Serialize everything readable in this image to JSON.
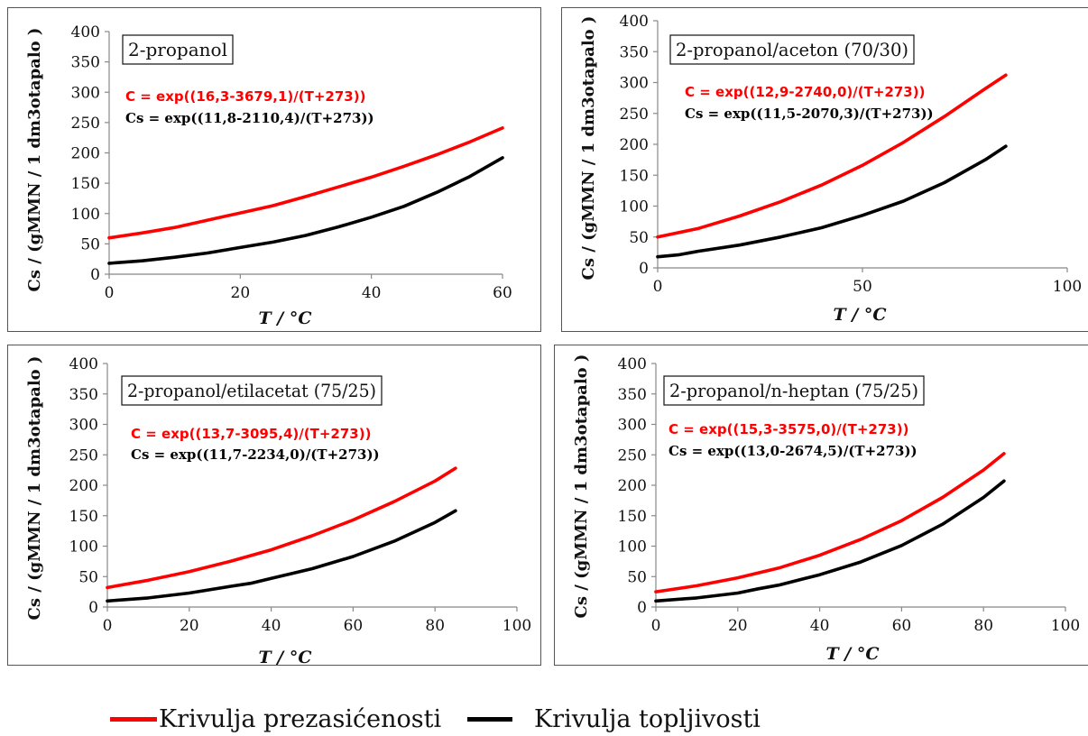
{
  "chart_data": [
    {
      "type": "line",
      "box_label": "2-propanol",
      "eq_red": "C = exp((16,3-3679,1)/(T+273))",
      "eq_black": "Cs = exp((11,8-2110,4)/(T+273))",
      "xlabel": "T / °C",
      "ylabel": "Cs / (gMMN / 1 dm3otapalo )",
      "xlim": [
        0,
        60
      ],
      "ylim": [
        0,
        400
      ],
      "xticks": [
        0,
        20,
        40,
        60
      ],
      "yticks": [
        0,
        50,
        100,
        150,
        200,
        250,
        300,
        350,
        400
      ],
      "grid": false,
      "series": [
        {
          "name": "Krivulja prezasićenosti",
          "color": "#ff0000",
          "x": [
            0,
            5,
            10,
            15,
            20,
            25,
            30,
            35,
            40,
            45,
            50,
            55,
            60
          ],
          "y": [
            60,
            68,
            77,
            89,
            101,
            113,
            128,
            144,
            160,
            178,
            197,
            218,
            241
          ]
        },
        {
          "name": "Krivulja topljivosti",
          "color": "#000000",
          "x": [
            0,
            5,
            10,
            15,
            20,
            25,
            30,
            35,
            40,
            45,
            50,
            55,
            60
          ],
          "y": [
            18,
            22,
            28,
            35,
            44,
            53,
            64,
            78,
            94,
            112,
            135,
            161,
            192
          ]
        }
      ]
    },
    {
      "type": "line",
      "box_label": "2-propanol/aceton (70/30)",
      "eq_red": "C = exp((12,9-2740,0)/(T+273))",
      "eq_black": "Cs = exp((11,5-2070,3)/(T+273))",
      "xlabel": "T / °C",
      "ylabel": "Cs / (gMMN / 1 dm3otapalo )",
      "xlim": [
        0,
        100
      ],
      "ylim": [
        0,
        400
      ],
      "xticks": [
        0,
        50,
        100
      ],
      "yticks": [
        0,
        50,
        100,
        150,
        200,
        250,
        300,
        350,
        400
      ],
      "grid": false,
      "series": [
        {
          "name": "Krivulja prezasićenosti",
          "color": "#ff0000",
          "x": [
            0,
            10,
            20,
            30,
            40,
            50,
            60,
            70,
            80,
            85
          ],
          "y": [
            50,
            64,
            84,
            107,
            134,
            166,
            203,
            245,
            290,
            312
          ]
        },
        {
          "name": "Krivulja topljivosti",
          "color": "#000000",
          "x": [
            0,
            5,
            10,
            20,
            30,
            40,
            50,
            60,
            70,
            80,
            85
          ],
          "y": [
            18,
            21,
            27,
            37,
            50,
            65,
            85,
            108,
            138,
            175,
            197
          ]
        }
      ]
    },
    {
      "type": "line",
      "box_label": "2-propanol/etilacetat (75/25)",
      "eq_red": "C = exp((13,7-3095,4)/(T+273))",
      "eq_black": "Cs = exp((11,7-2234,0)/(T+273))",
      "xlabel": "T / °C",
      "ylabel": "Cs / (gMMN / 1 dm3otapalo )",
      "xlim": [
        0,
        100
      ],
      "ylim": [
        0,
        400
      ],
      "xticks": [
        0,
        20,
        40,
        60,
        80,
        100
      ],
      "yticks": [
        0,
        50,
        100,
        150,
        200,
        250,
        300,
        350,
        400
      ],
      "grid": false,
      "series": [
        {
          "name": "Krivulja prezasićenosti",
          "color": "#ff0000",
          "x": [
            0,
            10,
            20,
            30,
            40,
            50,
            60,
            70,
            80,
            85
          ],
          "y": [
            32,
            44,
            58,
            75,
            94,
            117,
            143,
            173,
            207,
            228
          ]
        },
        {
          "name": "Krivulja topljivosti",
          "color": "#000000",
          "x": [
            0,
            10,
            20,
            30,
            35,
            40,
            50,
            60,
            70,
            80,
            85
          ],
          "y": [
            10,
            15,
            23,
            34,
            39,
            47,
            63,
            83,
            108,
            139,
            158
          ]
        }
      ]
    },
    {
      "type": "line",
      "box_label": "2-propanol/n-heptan (75/25)",
      "eq_red": "C = exp((15,3-3575,0)/(T+273))",
      "eq_black": "Cs = exp((13,0-2674,5)/(T+273))",
      "xlabel": "T / °C",
      "ylabel": "Cs / (gMMN / 1 dm3otapalo )",
      "xlim": [
        0,
        100
      ],
      "ylim": [
        0,
        400
      ],
      "xticks": [
        0,
        20,
        40,
        60,
        80,
        100
      ],
      "yticks": [
        0,
        50,
        100,
        150,
        200,
        250,
        300,
        350,
        400
      ],
      "grid": false,
      "series": [
        {
          "name": "Krivulja prezasićenosti",
          "color": "#ff0000",
          "x": [
            0,
            10,
            20,
            30,
            40,
            50,
            60,
            70,
            80,
            85
          ],
          "y": [
            25,
            35,
            48,
            64,
            85,
            111,
            142,
            180,
            225,
            252
          ]
        },
        {
          "name": "Krivulja topljivosti",
          "color": "#000000",
          "x": [
            0,
            10,
            20,
            25,
            30,
            40,
            50,
            60,
            70,
            80,
            85
          ],
          "y": [
            10,
            15,
            23,
            30,
            36,
            53,
            74,
            101,
            136,
            180,
            207
          ]
        }
      ]
    }
  ],
  "legend": [
    {
      "label": "Krivulja prezasićenosti",
      "color": "#ff0000"
    },
    {
      "label": "Krivulja topljivosti",
      "color": "#000000"
    }
  ]
}
